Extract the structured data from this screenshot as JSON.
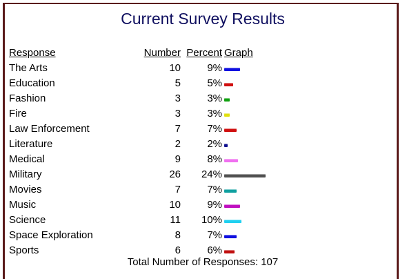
{
  "title": "Current Survey Results",
  "headers": {
    "response": "Response",
    "number": "Number",
    "percent": "Percent",
    "graph": "Graph"
  },
  "rows": [
    {
      "response": "The Arts",
      "number": "10",
      "percent": "9%",
      "pct": 9,
      "color": "#1010e0"
    },
    {
      "response": "Education",
      "number": "5",
      "percent": "5%",
      "pct": 5,
      "color": "#d01010"
    },
    {
      "response": "Fashion",
      "number": "3",
      "percent": "3%",
      "pct": 3,
      "color": "#10a010"
    },
    {
      "response": "Fire",
      "number": "3",
      "percent": "3%",
      "pct": 3,
      "color": "#e0e010"
    },
    {
      "response": "Law Enforcement",
      "number": "7",
      "percent": "7%",
      "pct": 7,
      "color": "#d01010"
    },
    {
      "response": "Literature",
      "number": "2",
      "percent": "2%",
      "pct": 2,
      "color": "#101090"
    },
    {
      "response": "Medical",
      "number": "9",
      "percent": "8%",
      "pct": 8,
      "color": "#f070f0"
    },
    {
      "response": "Military",
      "number": "26",
      "percent": "24%",
      "pct": 24,
      "color": "#505050"
    },
    {
      "response": "Movies",
      "number": "7",
      "percent": "7%",
      "pct": 7,
      "color": "#10a0a0"
    },
    {
      "response": "Music",
      "number": "10",
      "percent": "9%",
      "pct": 9,
      "color": "#c010c0"
    },
    {
      "response": "Science",
      "number": "11",
      "percent": "10%",
      "pct": 10,
      "color": "#20d0f0"
    },
    {
      "response": "Space Exploration",
      "number": "8",
      "percent": "7%",
      "pct": 7,
      "color": "#1010e0"
    },
    {
      "response": "Sports",
      "number": "6",
      "percent": "6%",
      "pct": 6,
      "color": "#c01010"
    }
  ],
  "total_label": "Total Number of Responses:",
  "total_value": "107"
}
